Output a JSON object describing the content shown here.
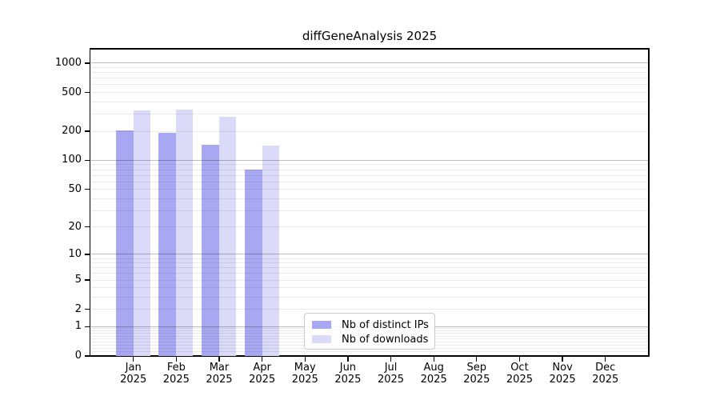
{
  "chart_data": {
    "type": "bar",
    "title": "diffGeneAnalysis 2025",
    "categories": [
      "Jan 2025",
      "Feb 2025",
      "Mar 2025",
      "Apr 2025",
      "May 2025",
      "Jun 2025",
      "Jul 2025",
      "Aug 2025",
      "Sep 2025",
      "Oct 2025",
      "Nov 2025",
      "Dec 2025"
    ],
    "series": [
      {
        "name": "Nb of distinct IPs",
        "color": "#a8a8f2",
        "values": [
          204,
          192,
          145,
          80,
          null,
          null,
          null,
          null,
          null,
          null,
          null,
          null
        ]
      },
      {
        "name": "Nb of downloads",
        "color": "#dbdbf9",
        "values": [
          327,
          336,
          281,
          143,
          null,
          null,
          null,
          null,
          null,
          null,
          null,
          null
        ]
      }
    ],
    "yscale": "log1p",
    "ylim": [
      0,
      1400
    ],
    "yticks": [
      0,
      1,
      2,
      5,
      10,
      20,
      50,
      100,
      200,
      500,
      1000
    ],
    "grid_major": [
      1,
      10,
      100,
      1000
    ],
    "grid": true,
    "legend_position": "lower center",
    "xlabel": "",
    "ylabel": ""
  },
  "colors": {
    "grid_major": "#bdbdbd",
    "grid_minor": "#ebebeb",
    "axis": "#000000",
    "legend_border": "#c9c9c9"
  }
}
